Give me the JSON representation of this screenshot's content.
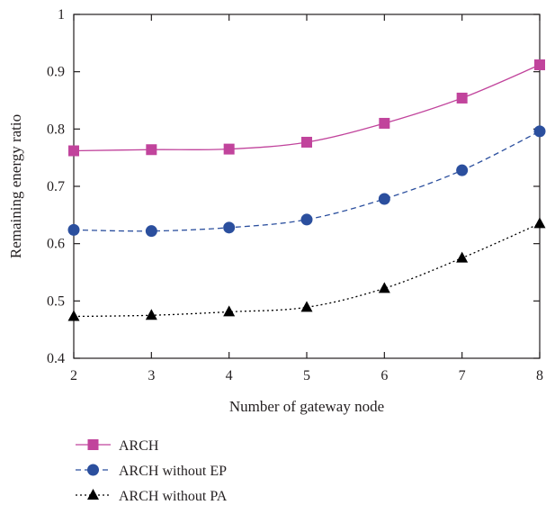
{
  "chart_data": {
    "type": "line",
    "title": "",
    "xlabel": "Number of gateway node",
    "ylabel": "Remaining energy ratio",
    "xlim": [
      2,
      8
    ],
    "ylim": [
      0.4,
      1.0
    ],
    "xticks": [
      2,
      3,
      4,
      5,
      6,
      7,
      8
    ],
    "yticks": [
      0.4,
      0.5,
      0.6,
      0.7,
      0.8,
      0.9,
      1.0
    ],
    "ytick_labels": [
      "0.4",
      "0.5",
      "0.6",
      "0.7",
      "0.8",
      "0.9",
      "1"
    ],
    "grid": false,
    "legend_position": "bottom-left, below plot",
    "x": [
      2,
      3,
      4,
      5,
      6,
      7,
      8
    ],
    "series": [
      {
        "name": "ARCH",
        "values": [
          0.762,
          0.764,
          0.765,
          0.777,
          0.81,
          0.854,
          0.912
        ],
        "color": "#c1449c",
        "marker": "square",
        "line_style": "solid"
      },
      {
        "name": "ARCH without EP",
        "values": [
          0.624,
          0.622,
          0.628,
          0.642,
          0.678,
          0.728,
          0.796
        ],
        "color": "#2b4f9e",
        "marker": "circle",
        "line_style": "dashed"
      },
      {
        "name": "ARCH without PA",
        "values": [
          0.473,
          0.475,
          0.481,
          0.489,
          0.522,
          0.575,
          0.635
        ],
        "color": "#000000",
        "marker": "triangle",
        "line_style": "dotted"
      }
    ]
  }
}
